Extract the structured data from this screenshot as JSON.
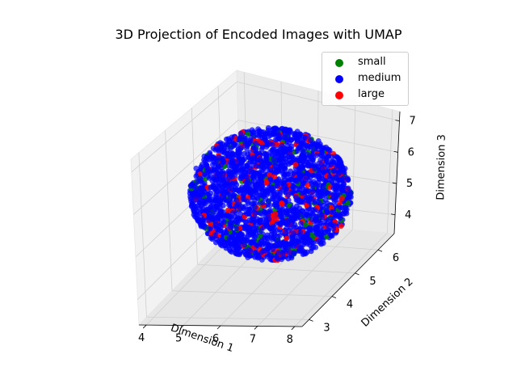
{
  "chart_data": {
    "type": "scatter",
    "title": "3D Projection of Encoded Images with UMAP",
    "xlabel": "Dimension 1",
    "ylabel": "Dimension 2",
    "zlabel": "Dimension 3",
    "xlim": [
      3.8,
      8.2
    ],
    "ylim": [
      2.7,
      6.7
    ],
    "zlim": [
      3.4,
      7.3
    ],
    "xticks": [
      "4",
      "5",
      "6",
      "7",
      "8"
    ],
    "yticks": [
      "3",
      "4",
      "5",
      "6"
    ],
    "zticks": [
      "4",
      "5",
      "6",
      "7"
    ],
    "legend_position": "top-right",
    "series": [
      {
        "name": "small",
        "color": "#008000"
      },
      {
        "name": "medium",
        "color": "#0000ff"
      },
      {
        "name": "large",
        "color": "#ff0000"
      }
    ]
  }
}
